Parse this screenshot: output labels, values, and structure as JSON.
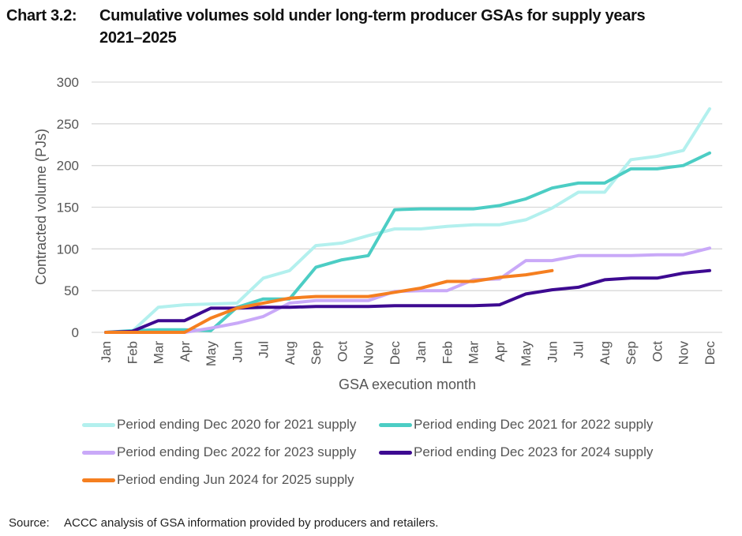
{
  "title": {
    "label": "Chart 3.2:",
    "line1": "Cumulative volumes sold under long-term producer GSAs for supply years",
    "line2": "2021–2025"
  },
  "source": {
    "label": "Source:",
    "text": "ACCC analysis of GSA information provided by producers and retailers."
  },
  "chart_data": {
    "type": "line",
    "title": "Cumulative volumes sold under long-term producer GSAs for supply years 2021–2025",
    "xlabel": "GSA execution month",
    "ylabel": "Contracted volume (PJs)",
    "ylim": [
      0,
      300
    ],
    "yticks": [
      0,
      50,
      100,
      150,
      200,
      250,
      300
    ],
    "grid": "horizontal",
    "legend_position": "bottom",
    "x": [
      "Jan",
      "Feb",
      "Mar",
      "Apr",
      "May",
      "Jun",
      "Jul",
      "Aug",
      "Sep",
      "Oct",
      "Nov",
      "Dec",
      "Jan",
      "Feb",
      "Mar",
      "Apr",
      "May",
      "Jun",
      "Jul",
      "Aug",
      "Sep",
      "Oct",
      "Nov",
      "Dec"
    ],
    "series": [
      {
        "name": "Period ending Dec 2020 for 2021 supply",
        "color": "#b3f0ee",
        "values": [
          0,
          1,
          30,
          33,
          34,
          35,
          65,
          74,
          104,
          107,
          116,
          124,
          124,
          127,
          129,
          129,
          135,
          149,
          168,
          168,
          207,
          211,
          218,
          268
        ]
      },
      {
        "name": "Period ending Dec 2021 for 2022 supply",
        "color": "#4ccdc4",
        "values": [
          0,
          2,
          3,
          3,
          2,
          30,
          40,
          40,
          78,
          87,
          92,
          147,
          148,
          148,
          148,
          152,
          160,
          173,
          179,
          179,
          196,
          196,
          200,
          215
        ]
      },
      {
        "name": "Period ending Dec 2022 for 2023 supply",
        "color": "#c9a9f8",
        "values": [
          0,
          0,
          0,
          0,
          5,
          11,
          19,
          35,
          38,
          38,
          38,
          49,
          50,
          50,
          63,
          64,
          86,
          86,
          92,
          92,
          92,
          93,
          93,
          101
        ]
      },
      {
        "name": "Period ending Dec 2023 for 2024 supply",
        "color": "#3d0a91",
        "values": [
          0,
          1,
          14,
          14,
          29,
          29,
          30,
          30,
          31,
          31,
          31,
          32,
          32,
          32,
          32,
          33,
          46,
          51,
          54,
          63,
          65,
          65,
          71,
          74
        ]
      },
      {
        "name": "Period ending Jun 2024 for 2025 supply",
        "color": "#f57f20",
        "values": [
          0,
          0,
          0,
          0,
          17,
          29,
          35,
          41,
          43,
          43,
          43,
          48,
          53,
          61,
          61,
          66,
          69,
          74,
          null,
          null,
          null,
          null,
          null,
          null
        ]
      }
    ]
  }
}
